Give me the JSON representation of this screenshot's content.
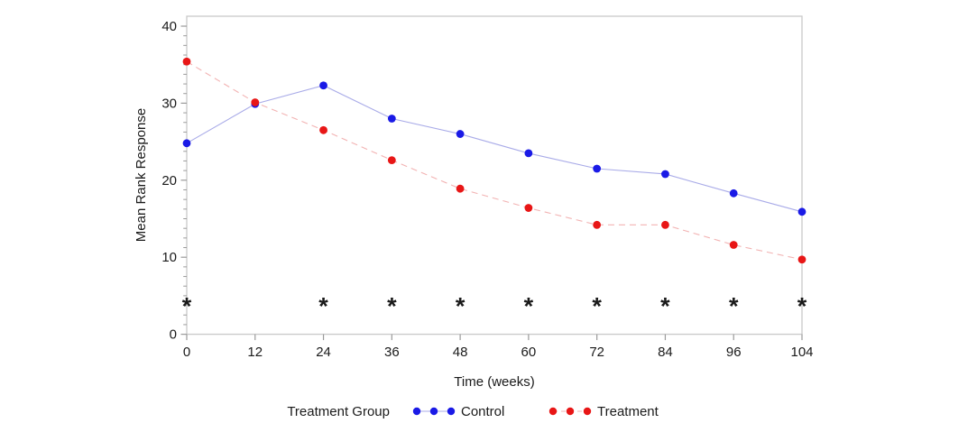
{
  "chart_data": {
    "type": "line",
    "title": "",
    "xlabel": "Time (weeks)",
    "ylabel": "Mean Rank Response",
    "x": [
      0,
      12,
      24,
      36,
      48,
      60,
      72,
      84,
      96,
      104
    ],
    "x_tick_labels": [
      "0",
      "12",
      "24",
      "36",
      "48",
      "60",
      "72",
      "84",
      "96",
      "104"
    ],
    "ylim": [
      0,
      40
    ],
    "yticks": [
      0,
      10,
      20,
      30,
      40
    ],
    "y_minor_tick_step": 1.25,
    "grid": false,
    "legend": {
      "position": "bottom-center",
      "title": "Treatment Group"
    },
    "series": [
      {
        "name": "Control",
        "values": [
          24.8,
          29.9,
          32.3,
          28.0,
          26.0,
          23.5,
          21.5,
          20.8,
          18.3,
          15.9
        ],
        "marker_color": "#1a1ae6",
        "line_color": "#a9abe8",
        "line_style": "solid"
      },
      {
        "name": "Treatment",
        "values": [
          35.4,
          30.1,
          26.5,
          22.6,
          18.9,
          16.4,
          14.2,
          14.2,
          11.6,
          9.7
        ],
        "marker_color": "#e81616",
        "line_color": "#f2b2b2",
        "line_style": "dashed"
      }
    ],
    "annotations": {
      "symbol": "*",
      "symbol_color": "#111111",
      "weeks": [
        0,
        24,
        36,
        48,
        60,
        72,
        84,
        96,
        104
      ],
      "y_value": 4
    },
    "colors": {
      "frame": "#c9c9c9",
      "tick": "#9a9a9a",
      "text": "#1a1a1a",
      "background": "#ffffff"
    }
  }
}
